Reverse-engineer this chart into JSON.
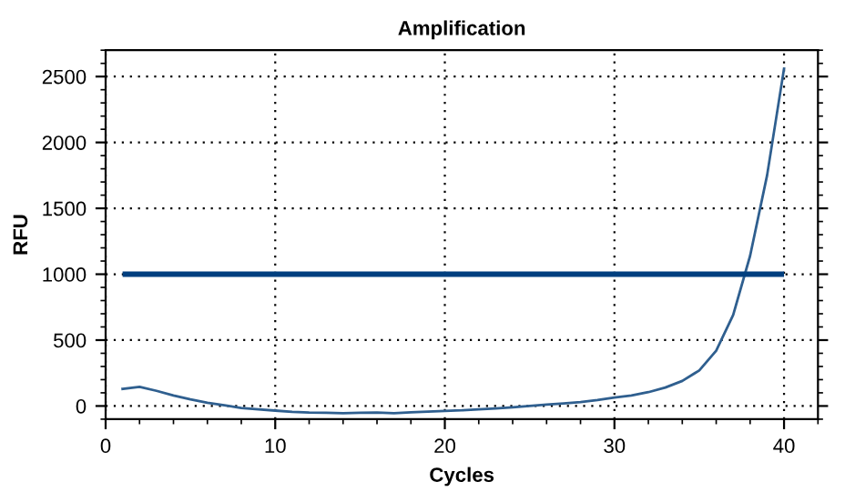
{
  "chart_data": {
    "type": "line",
    "title": "Amplification",
    "xlabel": "Cycles",
    "ylabel": "RFU",
    "x": [
      1,
      2,
      3,
      4,
      5,
      6,
      7,
      8,
      9,
      10,
      11,
      12,
      13,
      14,
      15,
      16,
      17,
      18,
      19,
      20,
      21,
      22,
      23,
      24,
      25,
      26,
      27,
      28,
      29,
      30,
      31,
      32,
      33,
      34,
      35,
      36,
      37,
      38,
      39,
      40
    ],
    "series": [
      {
        "color": "#2f5f8f",
        "values": [
          130,
          145,
          115,
          80,
          50,
          25,
          5,
          -15,
          -25,
          -35,
          -45,
          -50,
          -52,
          -55,
          -52,
          -50,
          -55,
          -48,
          -42,
          -38,
          -33,
          -25,
          -18,
          -10,
          0,
          10,
          20,
          30,
          45,
          65,
          80,
          105,
          140,
          190,
          270,
          420,
          690,
          1140,
          1750,
          2560
        ]
      }
    ],
    "ref_lines": [
      {
        "axis": "y",
        "value": 1000,
        "color": "#003f7f",
        "line_style": "solid"
      }
    ],
    "xlim": [
      0,
      42
    ],
    "ylim": [
      -100,
      2700
    ],
    "xticks": [
      0,
      10,
      20,
      30,
      40
    ],
    "yticks": [
      0,
      500,
      1000,
      1500,
      2000,
      2500
    ],
    "grid": true,
    "marker": "none",
    "line_style": "solid",
    "legend": false
  }
}
